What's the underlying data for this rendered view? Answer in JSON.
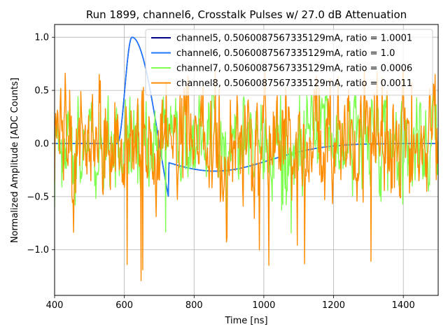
{
  "chart_data": {
    "type": "line",
    "title": "Run 1899, channel6, Crosstalk Pulses w/ 27.0 dB Attenuation",
    "xlabel": "Time [ns]",
    "ylabel": "Normalized Amplitude [ADC Counts]",
    "xlim": [
      400,
      1500
    ],
    "ylim": [
      -1.43,
      1.12
    ],
    "xticks": [
      400,
      600,
      800,
      1000,
      1200,
      1400
    ],
    "yticks": [
      -1.0,
      -0.5,
      0.0,
      0.5,
      1.0
    ],
    "xtick_labels": [
      "400",
      "600",
      "800",
      "1000",
      "1200",
      "1400"
    ],
    "ytick_labels": [
      "−1.0",
      "−0.5",
      "0.0",
      "0.5",
      "1.0"
    ],
    "grid": true,
    "legend_position": "top-right",
    "series": [
      {
        "name": "channel5, 0.5060087567335129mA, ratio = 1.0001",
        "color": "#00008b",
        "kind": "pulse",
        "values": {
          "baseline_x": [
            400,
            580
          ],
          "peak_x": 622,
          "peak_y": 1.0,
          "undershoot_y": -0.26,
          "undershoot_x": 860
        }
      },
      {
        "name": "channel6, 0.5060087567335129mA, ratio = 1.0",
        "color": "#1e78ff",
        "kind": "pulse",
        "values": {
          "baseline_x": [
            400,
            580
          ],
          "peak_x": 622,
          "peak_y": 1.0,
          "undershoot_y": -0.26,
          "undershoot_x": 860
        }
      },
      {
        "name": "channel7, 0.5060087567335129mA, ratio = 0.0006",
        "color": "#7fff50",
        "kind": "noise",
        "values": {
          "std": 0.25,
          "extreme_min": -0.85,
          "extreme_max": 0.45
        }
      },
      {
        "name": "channel8, 0.5060087567335129mA, ratio = 0.0011",
        "color": "#ff8c00",
        "kind": "noise",
        "values": {
          "std": 0.3,
          "extreme_min": -1.3,
          "extreme_max": 0.7
        }
      }
    ]
  }
}
